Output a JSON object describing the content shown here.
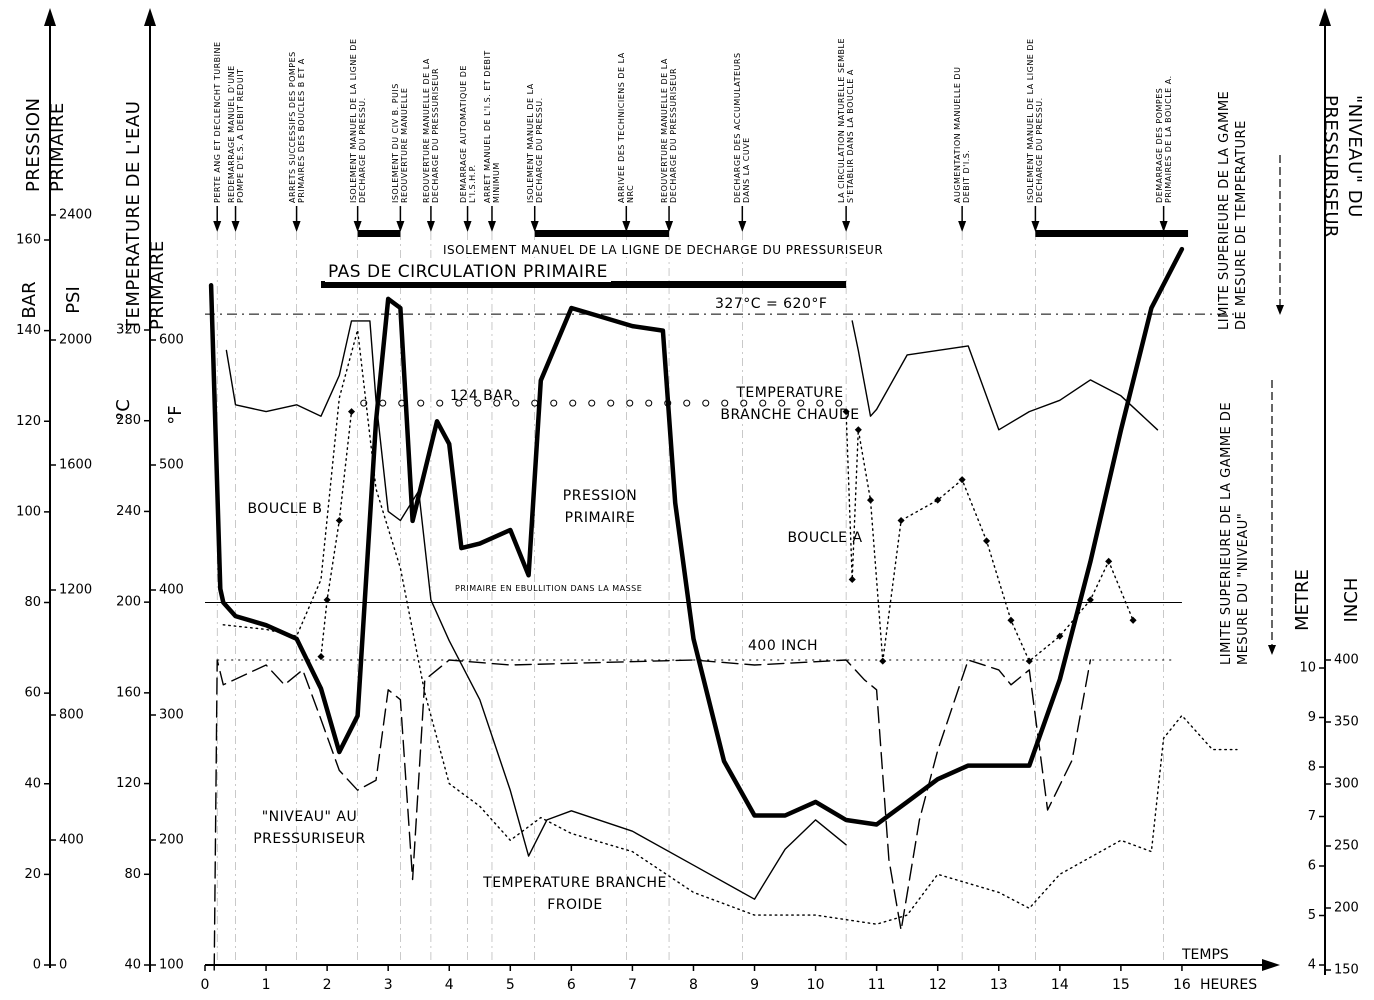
{
  "chart_data": {
    "type": "line",
    "axis_titles": [
      "PRESSION PRIMAIRE",
      "TEMPERATURE DE L'EAU PRIMAIRE",
      "\"NIVEAU\" DU PRESSURISEUR"
    ],
    "axes": [
      {
        "title": "BAR",
        "lim": [
          0,
          160
        ],
        "ticks": [
          0,
          20,
          40,
          60,
          80,
          100,
          120,
          140,
          160
        ]
      },
      {
        "title": "PSI",
        "lim": [
          0,
          2400
        ],
        "ticks": [
          0,
          400,
          800,
          1200,
          1600,
          2000,
          2400
        ]
      },
      {
        "title": "°C",
        "lim": [
          40,
          320
        ],
        "ticks": [
          40,
          80,
          120,
          160,
          200,
          240,
          280,
          320
        ]
      },
      {
        "title": "°F",
        "lim": [
          100,
          600
        ],
        "ticks": [
          100,
          200,
          300,
          400,
          500,
          600
        ]
      },
      {
        "title": "METRE",
        "lim": [
          4,
          10
        ],
        "ticks": [
          4,
          5,
          6,
          7,
          8,
          9,
          10
        ]
      },
      {
        "title": "INCH",
        "lim": [
          150,
          400
        ],
        "ticks": [
          150,
          200,
          250,
          300,
          350,
          400
        ]
      }
    ],
    "xlabel": "TEMPS",
    "xunit": "HEURES",
    "xlim": [
      0,
      17
    ],
    "xticks": [
      0,
      1,
      2,
      3,
      4,
      5,
      6,
      7,
      8,
      9,
      10,
      11,
      12,
      13,
      14,
      15,
      16
    ],
    "grid": false,
    "series": [
      {
        "name": "PRESSION PRIMAIRE",
        "axis": "BAR",
        "color": "#000000",
        "line_style": "solid",
        "weight": "bold",
        "x": [
          0.1,
          0.25,
          0.3,
          0.5,
          1,
          1.5,
          1.9,
          2.2,
          2.5,
          2.8,
          3.0,
          3.2,
          3.4,
          3.6,
          3.8,
          4.0,
          4.2,
          4.5,
          5.0,
          5.3,
          5.5,
          6.0,
          6.5,
          7.0,
          7.5,
          7.7,
          8.0,
          8.5,
          9.0,
          9.5,
          10.0,
          10.5,
          11.0,
          11.5,
          12.0,
          12.5,
          13.0,
          13.5,
          14.0,
          14.5,
          15.0,
          15.5,
          16.0
        ],
        "values": [
          150,
          83,
          80,
          77,
          75,
          72,
          61,
          47,
          55,
          120,
          147,
          145,
          98,
          109,
          120,
          115,
          92,
          93,
          96,
          86,
          129,
          145,
          143,
          141,
          140,
          102,
          72,
          45,
          33,
          33,
          36,
          32,
          31,
          36,
          41,
          44,
          44,
          44,
          63,
          89,
          118,
          145,
          158
        ]
      },
      {
        "name": "TEMPERATURE BRANCHE CHAUDE",
        "axis": "°C",
        "color": "#000000",
        "line_style": "solid",
        "weight": "normal",
        "x": [
          0.35,
          0.5,
          1,
          1.5,
          1.9,
          2.2,
          2.4,
          2.7,
          2.8,
          3.0,
          3.2,
          3.5,
          3.7,
          4.0,
          4.5,
          5.0,
          5.3,
          5.6,
          6.0,
          7.0,
          8.0,
          9.0,
          9.5,
          10.0,
          10.5,
          10.55,
          10.6,
          10.7,
          10.9,
          11.0,
          11.5,
          12.0,
          12.5,
          13.0,
          13.5,
          14.0,
          14.5,
          15.0,
          15.6
        ],
        "values": [
          311,
          287,
          284,
          287,
          282,
          300,
          324,
          324,
          289,
          240,
          236,
          249,
          201,
          183,
          157,
          117,
          88,
          104,
          108,
          99,
          84,
          69,
          91,
          104,
          93,
          null,
          324,
          311,
          282,
          285,
          309,
          311,
          313,
          276,
          284,
          289,
          298,
          291,
          276
        ]
      },
      {
        "name": "TEMPERATURE BRANCHE FROIDE",
        "axis": "°C",
        "color": "#000000",
        "line_style": "dotted",
        "weight": "normal",
        "x": [
          0.3,
          1,
          1.5,
          1.9,
          2.2,
          2.5,
          2.8,
          3.2,
          3.6,
          4,
          4.5,
          5,
          5.5,
          6,
          7,
          8,
          9,
          10,
          11,
          11.5,
          12,
          13,
          13.5,
          14,
          15,
          15.5,
          15.7,
          16,
          16.5,
          16.9
        ],
        "values": [
          190,
          188,
          185,
          210,
          290,
          320,
          250,
          215,
          160,
          120,
          110,
          95,
          105,
          98,
          90,
          72,
          62,
          62,
          58,
          62,
          80,
          72,
          65,
          80,
          95,
          90,
          140,
          150,
          135,
          135
        ]
      },
      {
        "name": "\"NIVEAU\" AU PRESSURISEUR",
        "axis": "INCH",
        "color": "#000000",
        "line_style": "dashed",
        "weight": "normal",
        "x": [
          0.15,
          0.2,
          0.3,
          1,
          1.3,
          1.6,
          1.9,
          2.2,
          2.5,
          2.8,
          3.0,
          3.2,
          3.4,
          3.6,
          4,
          5,
          8,
          9,
          10.5,
          10.8,
          11,
          11.2,
          11.4,
          11.7,
          12,
          12.5,
          13,
          13.2,
          13.5,
          13.8,
          14.2,
          14.5
        ],
        "values": [
          150,
          400,
          380,
          396,
          380,
          392,
          352,
          311,
          295,
          303,
          376,
          368,
          223,
          384,
          400,
          396,
          400,
          396,
          400,
          384,
          376,
          239,
          182,
          271,
          327,
          400,
          392,
          380,
          392,
          279,
          319,
          400
        ]
      },
      {
        "name": "BOUCLE A",
        "axis": "°C",
        "color": "#000000",
        "line_style": "dotted",
        "weight": "normal",
        "markers": "diamond",
        "x": [
          10.5,
          10.6,
          10.7,
          10.9,
          11.1,
          11.4,
          12.0,
          12.4,
          12.8,
          13.2,
          13.5,
          14.0,
          14.5,
          14.8,
          15.2
        ],
        "values": [
          284,
          210,
          276,
          245,
          174,
          236,
          245,
          254,
          227,
          192,
          174,
          185,
          201,
          218,
          192
        ]
      },
      {
        "name": "BOUCLE B",
        "axis": "°C",
        "color": "#000000",
        "line_style": "dotted",
        "weight": "normal",
        "markers": "diamond",
        "x": [
          1.9,
          2.0,
          2.2,
          2.4
        ],
        "values": [
          176,
          201,
          236,
          284
        ]
      }
    ],
    "ref_lines": [
      {
        "axis": "BAR",
        "value": 124,
        "label": "124 BAR",
        "style": "circles"
      },
      {
        "axis": "°C",
        "value": 327,
        "label": "327°C = 620°F",
        "style": "dash-dot"
      },
      {
        "axis": "INCH",
        "value": 400,
        "label": "400 INCH",
        "style": "dotted"
      },
      {
        "axis": "BAR",
        "value": 80,
        "label": "PRIMAIRE EN EBULLITION DANS LA MASSE",
        "style": "solid"
      }
    ],
    "spans": [
      {
        "label": "PAS DE CIRCULATION PRIMAIRE",
        "ranges": [
          [
            1.9,
            10.5
          ]
        ]
      },
      {
        "label": "ISOLEMENT MANUEL DE LA LIGNE DE DECHARGE DU PRESSURISEUR",
        "ranges": [
          [
            2.5,
            3.2
          ],
          [
            5.4,
            7.6
          ],
          [
            13.6,
            16.1
          ]
        ]
      }
    ],
    "events": [
      {
        "x": 0.2,
        "label": "PERTE ANG ET DECLENCHT TURBINE"
      },
      {
        "x": 0.5,
        "label": "REDEMARRAGE MANUEL D'UNE POMPE D'E.S. A DEBIT REDUIT"
      },
      {
        "x": 1.5,
        "label": "ARRETS SUCCESSIFS DES POMPES PRIMAIRES DES BOUCLES B ET A"
      },
      {
        "x": 2.5,
        "label": "ISOLEMENT MANUEL DE LA LIGNE DE DECHARGE DU PRESSU."
      },
      {
        "x": 3.2,
        "label": "ISOLEMENT DU CIV B. PUIS REOUVERTURE MANUELLE"
      },
      {
        "x": 3.7,
        "label": "REOUVERTURE MANUELLE DE LA DECHARGE DU PRESSURISEUR"
      },
      {
        "x": 4.3,
        "label": "DEMARRAGE AUTOMATIQUE DE L'I.S.H.P."
      },
      {
        "x": 4.7,
        "label": "ARRET MANUEL DE L'I.S. ET DEBIT MINIMUM"
      },
      {
        "x": 5.4,
        "label": "ISOLEMENT MANUEL DE LA DECHARGE DU PRESSU."
      },
      {
        "x": 6.9,
        "label": "ARRIVEE DES TECHNICIENS DE LA NRC"
      },
      {
        "x": 7.6,
        "label": "REOUVERTURE MANUELLE DE LA DECHARGE DU PRESSURISEUR"
      },
      {
        "x": 8.8,
        "label": "DECHARGE DES ACCUMULATEURS DANS LA CUVE"
      },
      {
        "x": 10.5,
        "label": "LA CIRCULATION NATURELLE SEMBLE S'ETABLIR DANS LA BOUCLE A"
      },
      {
        "x": 12.4,
        "label": "AUGMENTATION MANUELLE DU DEBIT D'I.S."
      },
      {
        "x": 13.6,
        "label": "ISOLEMENT MANUEL DE LA LIGNE DE DECHARGE DU PRESSU."
      },
      {
        "x": 15.7,
        "label": "DEMARRAGE DES POMPES PRIMAIRES DE LA BOUCLE A."
      }
    ],
    "limits": [
      "LIMITE SUPERIEURE DE LA GAMME DE MESURE DE TEMPERATURE",
      "LIMITE SUPERIEURE DE LA GAMME DE MESURE DU \"NIVEAU\""
    ]
  }
}
